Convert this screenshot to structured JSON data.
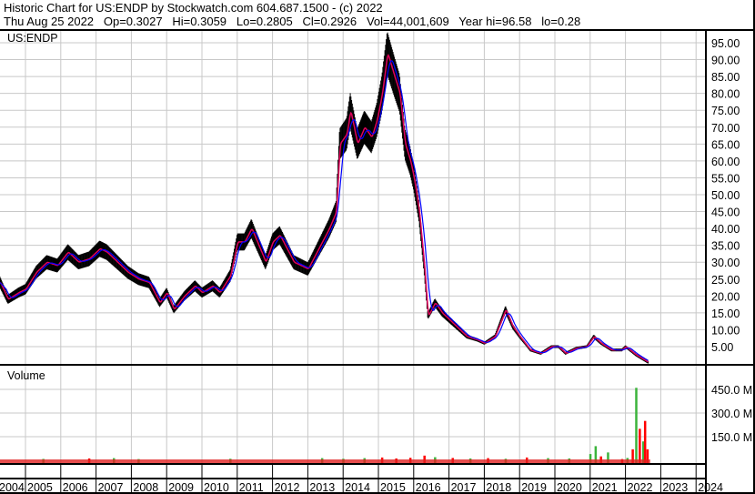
{
  "header": {
    "title": "Historic Chart for US:ENDP by Stockwatch.com 604.687.1500 - (c) 2022",
    "quote": "Thu Aug 25 2022   Op=0.3027   Hi=0.3059   Lo=0.2805   Cl=0.2926   Vol=44,001,609   Year hi=96.58   lo=0.28"
  },
  "chart_data": [
    {
      "type": "line",
      "title": "US:ENDP",
      "ylim": [
        0,
        97
      ],
      "y_ticks": [
        "95.00",
        "90.00",
        "85.00",
        "80.00",
        "75.00",
        "70.00",
        "65.00",
        "60.00",
        "55.00",
        "50.00",
        "45.00",
        "40.00",
        "35.00",
        "30.00",
        "25.00",
        "20.00",
        "15.00",
        "10.00",
        "5.00"
      ],
      "x_ticks": [
        "2004",
        "2005",
        "2006",
        "2007",
        "2008",
        "2009",
        "2010",
        "2011",
        "2012",
        "2013",
        "2014",
        "2015",
        "2016",
        "2017",
        "2018",
        "2019",
        "2020",
        "2021",
        "2022",
        "2023",
        "2024"
      ],
      "grid": true,
      "colors": {
        "price": "#000000",
        "short_ma": "#e0005a",
        "long_ma": "#0000ff"
      },
      "x": [
        2004.28,
        2004.5,
        2004.8,
        2005.0,
        2005.3,
        2005.6,
        2005.9,
        2006.2,
        2006.5,
        2006.8,
        2007.1,
        2007.3,
        2007.6,
        2007.9,
        2008.2,
        2008.5,
        2008.8,
        2009.0,
        2009.2,
        2009.5,
        2009.8,
        2010.0,
        2010.3,
        2010.5,
        2010.8,
        2011.0,
        2011.2,
        2011.4,
        2011.6,
        2011.8,
        2012.0,
        2012.2,
        2012.4,
        2012.6,
        2012.8,
        2013.0,
        2013.2,
        2013.4,
        2013.6,
        2013.8,
        2013.9,
        2014.1,
        2014.2,
        2014.4,
        2014.6,
        2014.8,
        2014.95,
        2015.1,
        2015.25,
        2015.45,
        2015.6,
        2015.75,
        2015.9,
        2016.0,
        2016.15,
        2016.3,
        2016.4,
        2016.6,
        2016.8,
        2017.0,
        2017.2,
        2017.5,
        2017.8,
        2018.0,
        2018.3,
        2018.6,
        2018.8,
        2019.0,
        2019.3,
        2019.6,
        2019.9,
        2020.1,
        2020.3,
        2020.6,
        2020.9,
        2021.1,
        2021.3,
        2021.6,
        2021.9,
        2022.0,
        2022.3,
        2022.65
      ],
      "close": [
        24,
        19,
        21,
        22,
        27,
        30,
        29,
        33,
        30,
        31,
        34,
        33,
        30,
        27,
        25,
        24,
        18,
        21,
        16,
        20,
        23,
        21,
        23,
        21,
        26,
        36,
        36,
        40,
        35,
        30,
        36,
        38,
        34,
        30,
        29,
        28,
        32,
        36,
        40,
        45,
        65,
        68,
        75,
        65,
        70,
        67,
        72,
        80,
        92,
        85,
        80,
        65,
        60,
        55,
        45,
        28,
        14,
        18,
        15,
        13,
        11,
        8,
        7,
        6,
        8,
        16,
        11,
        8,
        4,
        3,
        5,
        5,
        3,
        4.5,
        5,
        8,
        6,
        4,
        4,
        5,
        2.5,
        0.3
      ]
    },
    {
      "type": "bar",
      "title": "Volume",
      "y_ticks": [
        "450.0 M",
        "300.0 M",
        "150.0 M"
      ],
      "ylim": [
        0,
        480
      ],
      "unit": "M",
      "colors": {
        "up": "#3cb43c",
        "down": "#ff0000"
      },
      "x": [
        2005.5,
        2006.8,
        2007.5,
        2008.2,
        2010.8,
        2013.4,
        2014.0,
        2014.6,
        2015.1,
        2015.5,
        2015.9,
        2016.3,
        2016.6,
        2017.1,
        2017.6,
        2018.1,
        2018.6,
        2019.2,
        2019.8,
        2020.4,
        2021.0,
        2021.15,
        2021.3,
        2021.5,
        2021.9,
        2022.05,
        2022.2,
        2022.3,
        2022.4,
        2022.5,
        2022.55,
        2022.62
      ],
      "values": [
        9,
        12,
        14,
        8,
        10,
        14,
        10,
        14,
        18,
        12,
        16,
        30,
        20,
        15,
        12,
        14,
        10,
        18,
        14,
        12,
        40,
        90,
        25,
        50,
        8,
        15,
        70,
        460,
        200,
        120,
        250,
        70
      ],
      "direction": [
        "up",
        "down",
        "up",
        "up",
        "up",
        "up",
        "up",
        "up",
        "down",
        "down",
        "down",
        "down",
        "up",
        "down",
        "up",
        "down",
        "up",
        "down",
        "up",
        "up",
        "up",
        "up",
        "down",
        "up",
        "down",
        "up",
        "down",
        "up",
        "down",
        "up",
        "down",
        "down"
      ]
    }
  ]
}
